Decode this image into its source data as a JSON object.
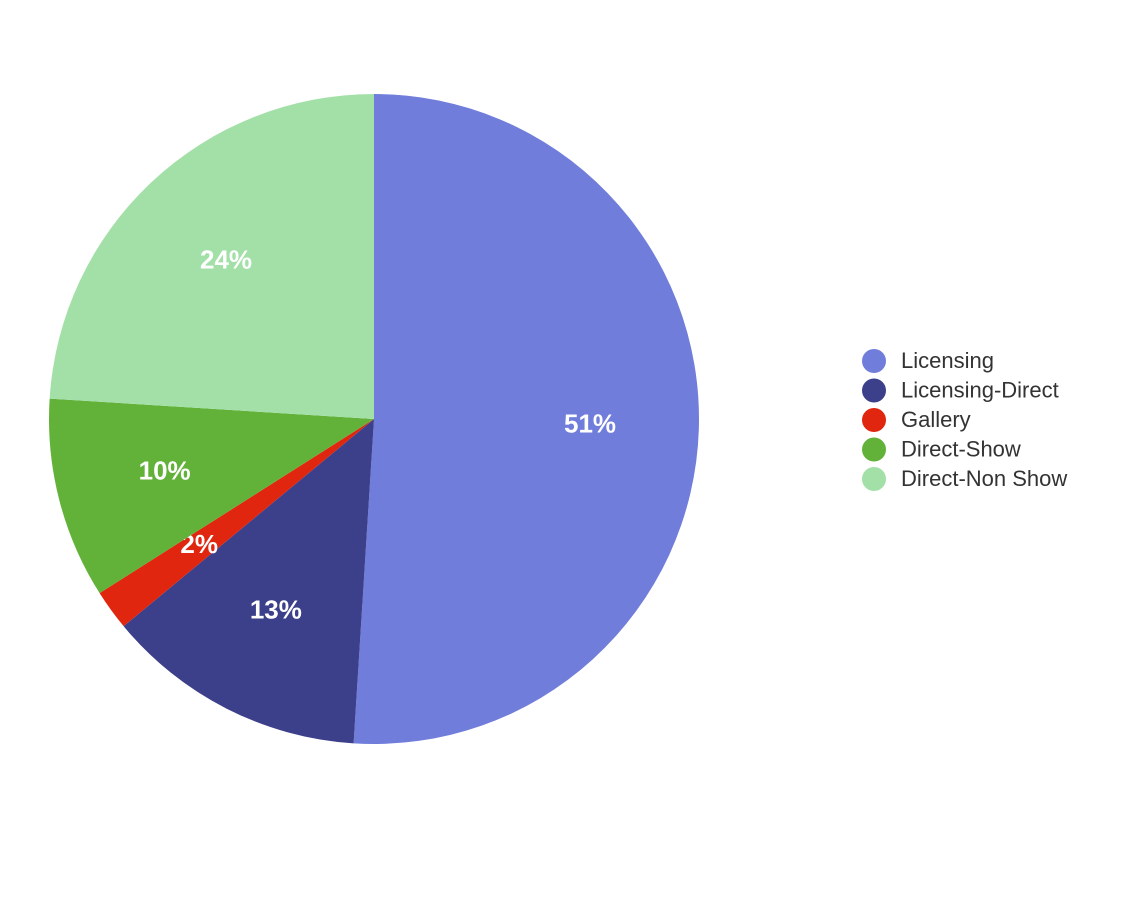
{
  "chart_data": {
    "type": "pie",
    "categories": [
      "Licensing",
      "Licensing-Direct",
      "Gallery",
      "Direct-Show",
      "Direct-Non Show"
    ],
    "values": [
      51,
      13,
      2,
      10,
      24
    ],
    "value_labels": [
      "51%",
      "13%",
      "2%",
      "10%",
      "24%"
    ],
    "colors": [
      "#707ddb",
      "#3c3f8a",
      "#e0260f",
      "#62b23a",
      "#a3e0a8"
    ],
    "legend": "right"
  }
}
